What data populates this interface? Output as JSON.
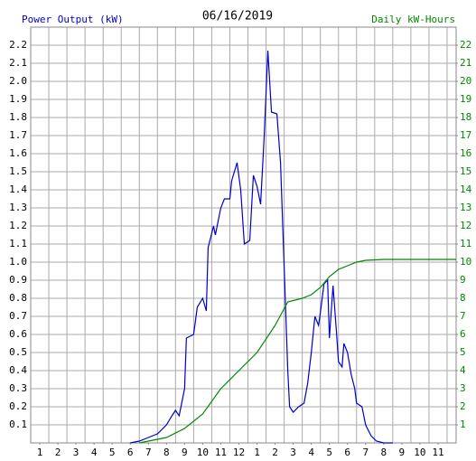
{
  "chart_data": {
    "type": "line",
    "title": "06/16/2019",
    "y_label": "Power Output (kW)",
    "y2_label": "Daily kW-Hours",
    "xlim": [
      0.5,
      24
    ],
    "xticks": [
      1,
      2,
      3,
      4,
      5,
      6,
      7,
      8,
      9,
      10,
      11,
      12,
      {
        "value": 13,
        "label": "1"
      },
      {
        "value": 14,
        "label": "2"
      },
      {
        "value": 15,
        "label": "3"
      },
      {
        "value": 16,
        "label": "4"
      },
      {
        "value": 17,
        "label": "5"
      },
      {
        "value": 18,
        "label": "6"
      },
      {
        "value": 19,
        "label": "7"
      },
      {
        "value": 20,
        "label": "8"
      },
      {
        "value": 21,
        "label": "9"
      },
      {
        "value": 22,
        "label": "10"
      },
      {
        "value": 23,
        "label": "11"
      }
    ],
    "xgrid": [
      1.5,
      2.5,
      3.5,
      4.5,
      5.5,
      6.5,
      7.5,
      8.5,
      9.5,
      10.5,
      11.5,
      12.5,
      13.5,
      14.5,
      15.5,
      16.5,
      17.5,
      18.5,
      19.5,
      20.5,
      21.5,
      22.5,
      23.5
    ],
    "ylim": [
      0,
      2.3
    ],
    "yticks": [
      0.1,
      0.2,
      0.3,
      0.4,
      0.5,
      0.6,
      0.7,
      0.8,
      0.9,
      {
        "value": 1,
        "label": "1.0"
      },
      1.1,
      1.2,
      1.3,
      1.4,
      1.5,
      1.6,
      1.7,
      1.8,
      1.9,
      {
        "value": 2,
        "label": "2.0"
      },
      2.1,
      2.2
    ],
    "y2lim": [
      0,
      23
    ],
    "y2ticks": [
      1,
      2,
      3,
      4,
      5,
      6,
      7,
      8,
      9,
      10,
      11,
      12,
      13,
      14,
      15,
      16,
      17,
      18,
      19,
      20,
      21,
      22
    ],
    "grid": true,
    "series": [
      {
        "name": "Power Output (kW)",
        "color": "#0000cc",
        "axis": "y",
        "x": [
          6.0,
          6.5,
          7.0,
          7.5,
          8.0,
          8.3,
          8.5,
          8.7,
          9.0,
          9.1,
          9.5,
          9.7,
          10.0,
          10.2,
          10.3,
          10.6,
          10.7,
          11.0,
          11.2,
          11.5,
          11.6,
          11.9,
          12.1,
          12.3,
          12.6,
          12.8,
          13.0,
          13.2,
          13.4,
          13.6,
          13.8,
          14.1,
          14.3,
          14.7,
          14.8,
          15.0,
          15.3,
          15.6,
          15.8,
          16.0,
          16.2,
          16.4,
          16.5,
          16.7,
          16.9,
          17.0,
          17.2,
          17.4,
          17.5,
          17.7,
          17.8,
          18.0,
          18.2,
          18.4,
          18.5,
          18.8,
          19.0,
          19.3,
          19.6,
          20.0,
          20.5
        ],
        "values": [
          0,
          0.01,
          0.03,
          0.05,
          0.1,
          0.15,
          0.18,
          0.15,
          0.3,
          0.58,
          0.6,
          0.75,
          0.8,
          0.73,
          1.08,
          1.2,
          1.15,
          1.3,
          1.35,
          1.35,
          1.45,
          1.55,
          1.4,
          1.1,
          1.12,
          1.48,
          1.42,
          1.32,
          1.7,
          2.17,
          1.83,
          1.82,
          1.55,
          0.4,
          0.2,
          0.17,
          0.2,
          0.22,
          0.33,
          0.5,
          0.7,
          0.65,
          0.72,
          0.88,
          0.9,
          0.58,
          0.87,
          0.6,
          0.45,
          0.42,
          0.55,
          0.5,
          0.38,
          0.3,
          0.22,
          0.2,
          0.1,
          0.04,
          0.01,
          0,
          0
        ]
      },
      {
        "name": "Daily kW-Hours",
        "color": "#008800",
        "axis": "y2",
        "x": [
          6.5,
          8.0,
          9.0,
          10.0,
          11.0,
          12.0,
          13.0,
          14.0,
          14.7,
          15.5,
          16.0,
          16.5,
          17.0,
          17.5,
          18.0,
          18.5,
          19.0,
          20.0,
          24.0
        ],
        "values": [
          0,
          0.3,
          0.8,
          1.6,
          3,
          4,
          5,
          6.5,
          7.8,
          8,
          8.2,
          8.6,
          9.2,
          9.6,
          9.8,
          10.0,
          10.1,
          10.15,
          10.15
        ]
      }
    ]
  }
}
